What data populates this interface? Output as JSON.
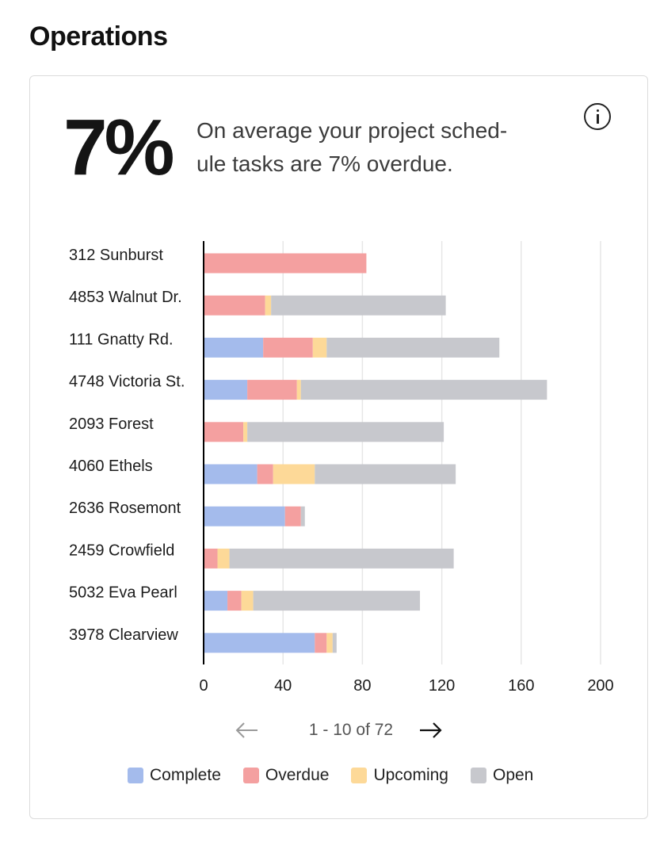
{
  "header": {
    "title": "Operations"
  },
  "summary": {
    "percentage": "7%",
    "description": "On average your project sched-ule tasks are 7% overdue.",
    "description_line1": "On average your project sched-",
    "description_line2": "ule tasks are 7% overdue.",
    "info_icon": "info-circle-icon"
  },
  "colors": {
    "complete": "#a4bbec",
    "overdue": "#f4a0a0",
    "upcoming": "#fdd998",
    "open": "#c7c8cd",
    "axis": "#000000",
    "grid": "#e6e6e6"
  },
  "chart_data": {
    "type": "bar",
    "orientation": "horizontal",
    "stacked": true,
    "categories": [
      "312 Sunburst",
      "4853 Walnut Dr.",
      "111 Gnatty Rd.",
      "4748 Victoria St.",
      "2093 Forest",
      "4060 Ethels",
      "2636 Rosemont",
      "2459 Crowfield",
      "5032 Eva Pearl",
      "3978 Clearview"
    ],
    "series": [
      {
        "name": "Complete",
        "color": "#a4bbec",
        "values": [
          0,
          0,
          30,
          22,
          0,
          27,
          41,
          0,
          12,
          56
        ]
      },
      {
        "name": "Overdue",
        "color": "#f4a0a0",
        "values": [
          82,
          31,
          25,
          25,
          20,
          8,
          8,
          7,
          7,
          6
        ]
      },
      {
        "name": "Upcoming",
        "color": "#fdd998",
        "values": [
          0,
          3,
          7,
          2,
          2,
          21,
          0,
          6,
          6,
          3
        ]
      },
      {
        "name": "Open",
        "color": "#c7c8cd",
        "values": [
          0,
          88,
          87,
          124,
          99,
          71,
          2,
          113,
          84,
          2
        ]
      }
    ],
    "xlim": [
      0,
      200
    ],
    "xticks": [
      0,
      40,
      80,
      120,
      160,
      200
    ],
    "grid": true,
    "legend_position": "bottom",
    "xlabel": "",
    "ylabel": ""
  },
  "pagination": {
    "label": "1 - 10 of 72",
    "prev_icon": "arrow-left-icon",
    "next_icon": "arrow-right-icon"
  },
  "legend": {
    "items": [
      "Complete",
      "Overdue",
      "Upcoming",
      "Open"
    ]
  }
}
